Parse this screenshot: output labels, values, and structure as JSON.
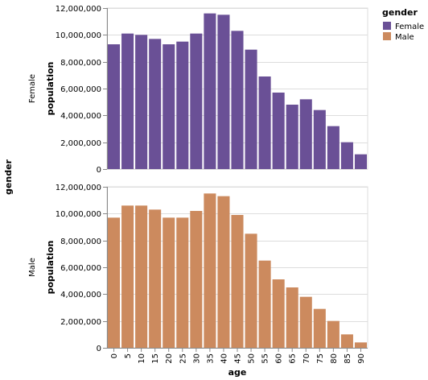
{
  "chart_data": {
    "type": "bar",
    "row_title": "gender",
    "xlabel": "age",
    "ylabel": "population",
    "ylim": [
      0,
      12000000
    ],
    "y_ticks": [
      "0",
      "2,000,000",
      "4,000,000",
      "6,000,000",
      "8,000,000",
      "10,000,000",
      "12,000,000"
    ],
    "y_tick_values": [
      0,
      2000000,
      4000000,
      6000000,
      8000000,
      10000000,
      12000000
    ],
    "grid": true,
    "categories": [
      "0",
      "5",
      "10",
      "15",
      "20",
      "25",
      "30",
      "35",
      "40",
      "45",
      "50",
      "55",
      "60",
      "65",
      "70",
      "75",
      "80",
      "85",
      "90"
    ],
    "series": [
      {
        "name": "Female",
        "color": "#6a5096",
        "values": [
          9300000,
          10100000,
          10000000,
          9700000,
          9300000,
          9500000,
          10100000,
          11600000,
          11500000,
          10300000,
          8900000,
          6900000,
          5700000,
          4800000,
          5200000,
          4400000,
          3200000,
          2000000,
          1100000
        ]
      },
      {
        "name": "Male",
        "color": "#cc8a5e",
        "values": [
          9700000,
          10600000,
          10600000,
          10300000,
          9700000,
          9700000,
          10200000,
          11500000,
          11300000,
          9900000,
          8500000,
          6500000,
          5100000,
          4500000,
          3800000,
          2900000,
          2000000,
          1000000,
          400000
        ]
      }
    ],
    "legend": {
      "title": "gender",
      "position": "top-right",
      "entries": [
        "Female",
        "Male"
      ]
    }
  }
}
